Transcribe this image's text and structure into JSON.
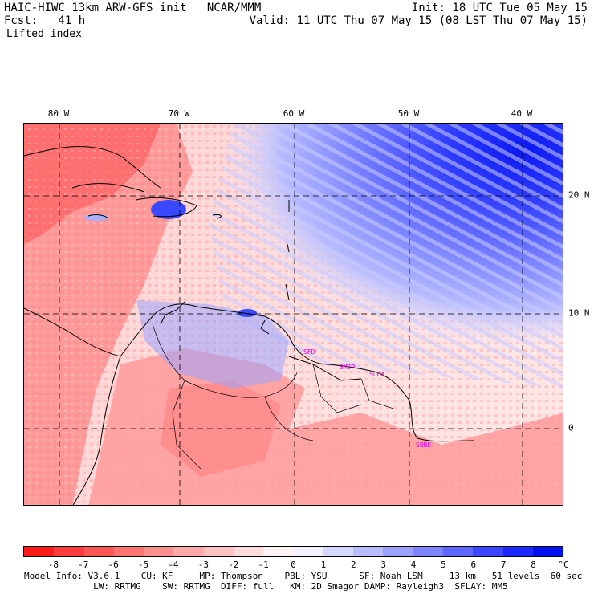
{
  "header": {
    "line1_left": "HAIC-HIWC 13km ARW-GFS init   NCAR/MMM",
    "line1_right": "Init: 18 UTC Tue 05 May 15",
    "line2_left": "Fcst:   41 h",
    "line2_right": "Valid: 11 UTC Thu 07 May 15 (08 LST Thu 07 May 15)",
    "field": "Lifted index"
  },
  "map": {
    "lon_labels": [
      "80 W",
      "70 W",
      "60 W",
      "50 W",
      "40 W"
    ],
    "lat_labels": [
      "20 N",
      "10 N",
      "0"
    ],
    "sites": [
      "SFD",
      "SMJP",
      "SOCA",
      "SBBE"
    ]
  },
  "colorbar": {
    "ticks": [
      "-8",
      "-7",
      "-6",
      "-5",
      "-4",
      "-3",
      "-2",
      "-1",
      "0",
      "1",
      "2",
      "3",
      "4",
      "5",
      "6",
      "7",
      "8"
    ],
    "unit": "°C",
    "colors": [
      "#ff1a1a",
      "#ff3b3b",
      "#ff5757",
      "#ff7373",
      "#ff8e8e",
      "#ffa8a8",
      "#ffc2c2",
      "#ffdcdc",
      "#fff4f4",
      "#f2f2ff",
      "#d6d8ff",
      "#b9bdff",
      "#9aa1ff",
      "#7c84ff",
      "#5d66ff",
      "#3c47ff",
      "#1c28ff",
      "#0010ee"
    ]
  },
  "footer": {
    "line1": "Model Info: V3.6.1    CU: KF     MP: Thompson    PBL: YSU      SF: Noah LSM     13 km   51 levels  60 sec",
    "line2": "             LW: RRTMG    SW: RRTMG  DIFF: full   KM: 2D Smagor DAMP: Rayleigh3  SFLAY: MM5"
  }
}
